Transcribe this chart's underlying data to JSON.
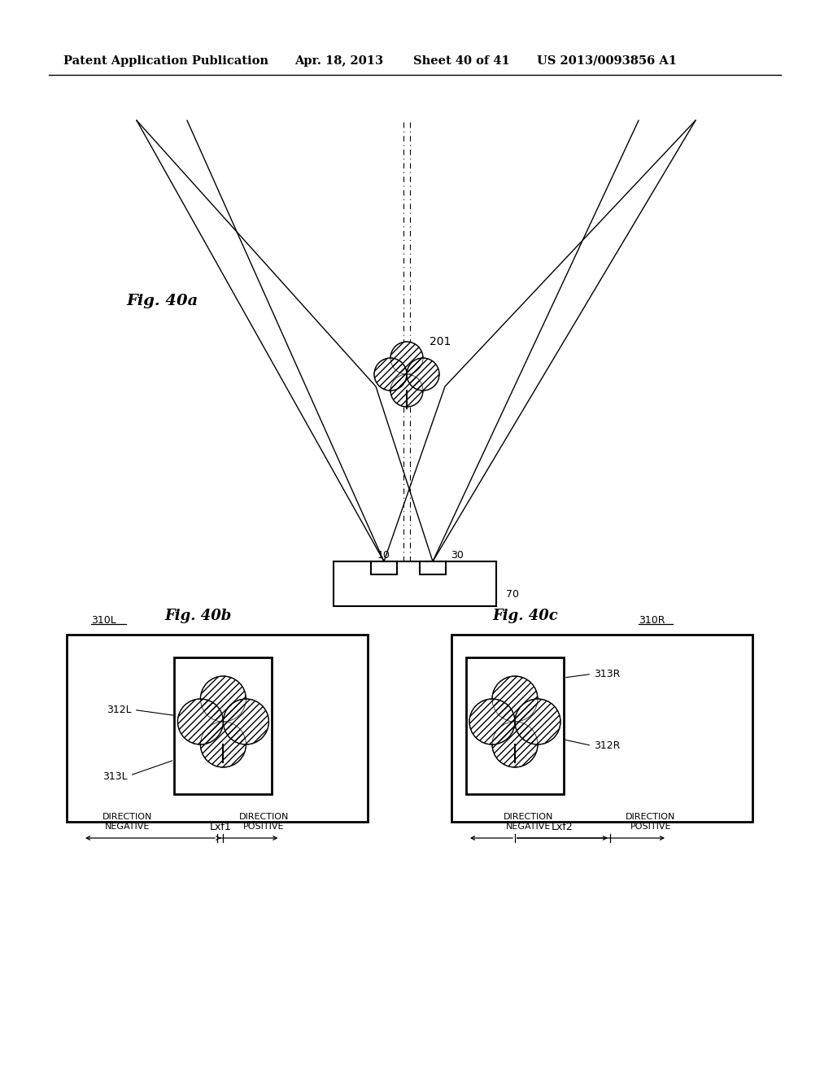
{
  "bg_color": "#ffffff",
  "header_text": "Patent Application Publication",
  "header_date": "Apr. 18, 2013",
  "header_sheet": "Sheet 40 of 41",
  "header_patent": "US 2013/0093856 A1",
  "fig_label_40a": "Fig. 40a",
  "fig_label_40b": "Fig. 40b",
  "fig_label_40c": "Fig. 40c",
  "label_201": "201",
  "label_10": "10",
  "label_30": "30",
  "label_70": "70",
  "label_310L": "310L",
  "label_310R": "310R",
  "label_312L": "312L",
  "label_313L": "313L",
  "label_312R": "312R",
  "label_313R": "313R",
  "label_Lxf1": "Lxf1",
  "label_Lxf2": "Lxf2"
}
